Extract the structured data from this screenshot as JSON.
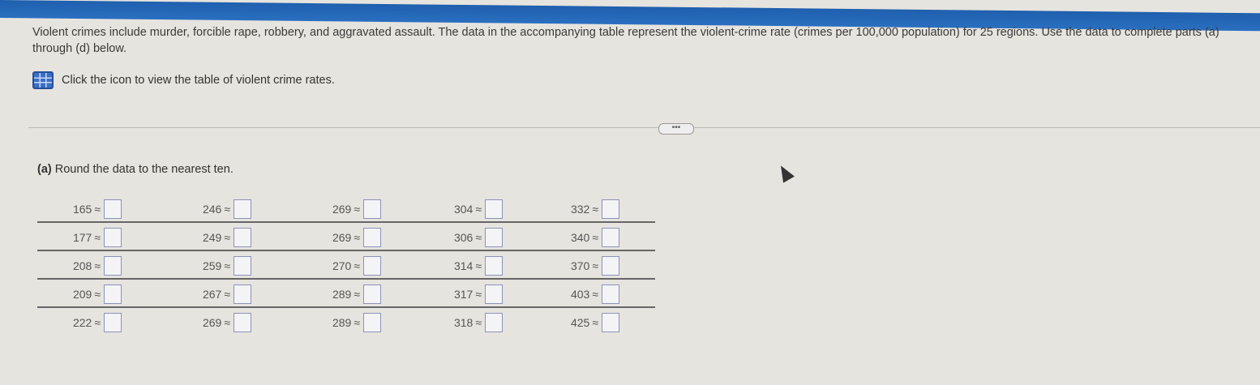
{
  "intro": {
    "text": "Violent crimes include murder, forcible rape, robbery, and aggravated assault. The data in the accompanying table represent the violent-crime rate (crimes per 100,000 population) for 25 regions. Use the data to complete parts (a) through (d) below.",
    "table_link_text": "Click the icon to view the table of violent crime rates.",
    "table_icon": "table-grid-icon"
  },
  "more_button": "•••",
  "part_a": {
    "label": "(a)",
    "instruction": "Round the data to the nearest ten.",
    "approx_symbol": "≈",
    "rows": [
      [
        "165",
        "246",
        "269",
        "304",
        "332"
      ],
      [
        "177",
        "249",
        "269",
        "306",
        "340"
      ],
      [
        "208",
        "259",
        "270",
        "314",
        "370"
      ],
      [
        "209",
        "267",
        "289",
        "317",
        "403"
      ],
      [
        "222",
        "269",
        "289",
        "318",
        "425"
      ]
    ]
  }
}
